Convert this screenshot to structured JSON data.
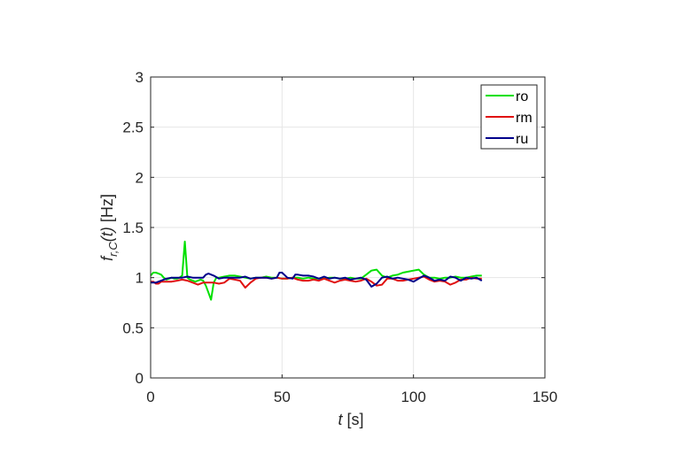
{
  "chart_data": {
    "type": "line",
    "title": "",
    "xlabel": {
      "italic": "t",
      "plain": " [s]"
    },
    "ylabel": {
      "italic_main": "f",
      "subscript": "r,C",
      "italic_arg": "(t)",
      "plain": " [Hz]"
    },
    "xlim": [
      0,
      150
    ],
    "ylim": [
      0,
      3
    ],
    "xticks": [
      "0",
      "50",
      "100",
      "150"
    ],
    "yticks": [
      "0",
      "0.5",
      "1",
      "1.5",
      "2",
      "2.5",
      "3"
    ],
    "grid": true,
    "legend_position": "top-right",
    "series": [
      {
        "name": "ro",
        "color": "#00e000",
        "x": [
          0,
          1,
          2,
          3,
          4,
          5,
          6,
          7,
          8,
          9,
          10,
          11,
          12,
          13,
          14,
          15,
          16,
          17,
          18,
          19,
          20,
          21,
          22,
          23,
          24,
          25,
          26,
          28,
          30,
          32,
          34,
          36,
          38,
          40,
          42,
          44,
          46,
          48,
          50,
          52,
          54,
          56,
          58,
          60,
          62,
          64,
          66,
          68,
          70,
          72,
          74,
          76,
          78,
          80,
          82,
          84,
          86,
          88,
          90,
          92,
          94,
          96,
          98,
          100,
          102,
          104,
          106,
          108,
          110,
          112,
          114,
          116,
          118,
          120,
          122,
          124,
          126
        ],
        "y": [
          1.02,
          1.05,
          1.05,
          1.04,
          1.03,
          1.0,
          0.98,
          0.99,
          1.0,
          0.99,
          0.99,
          1.0,
          1.02,
          1.36,
          1.0,
          0.98,
          0.97,
          0.96,
          0.97,
          0.98,
          0.97,
          0.92,
          0.85,
          0.78,
          0.95,
          1.0,
          1.0,
          1.01,
          1.02,
          1.02,
          1.01,
          1.0,
          0.99,
          1.0,
          1.0,
          1.01,
          1.0,
          1.0,
          0.99,
          0.99,
          1.0,
          1.0,
          0.99,
          1.0,
          0.99,
          0.99,
          0.99,
          1.0,
          1.0,
          0.99,
          0.99,
          1.0,
          0.99,
          0.99,
          1.03,
          1.07,
          1.08,
          1.02,
          1.0,
          1.02,
          1.03,
          1.05,
          1.06,
          1.07,
          1.08,
          1.03,
          1.0,
          1.0,
          0.99,
          1.0,
          1.0,
          1.01,
          1.0,
          1.0,
          1.01,
          1.02,
          1.02
        ]
      },
      {
        "name": "rm",
        "color": "#e01010",
        "x": [
          0,
          1,
          2,
          3,
          4,
          6,
          8,
          10,
          12,
          14,
          16,
          18,
          20,
          22,
          24,
          26,
          28,
          30,
          32,
          34,
          36,
          38,
          40,
          42,
          44,
          46,
          48,
          50,
          52,
          54,
          56,
          58,
          60,
          62,
          64,
          66,
          68,
          70,
          72,
          74,
          76,
          78,
          80,
          82,
          84,
          86,
          88,
          90,
          92,
          94,
          96,
          98,
          100,
          102,
          104,
          106,
          108,
          110,
          112,
          114,
          116,
          118,
          120,
          122,
          124,
          126
        ],
        "y": [
          0.96,
          0.96,
          0.94,
          0.94,
          0.96,
          0.96,
          0.96,
          0.97,
          0.98,
          0.97,
          0.95,
          0.93,
          0.95,
          0.95,
          0.95,
          0.94,
          0.95,
          0.99,
          0.98,
          0.97,
          0.9,
          0.95,
          0.99,
          1.0,
          1.0,
          0.99,
          1.0,
          0.99,
          0.99,
          1.0,
          0.98,
          0.97,
          0.97,
          0.98,
          0.97,
          0.99,
          0.97,
          0.95,
          0.97,
          0.98,
          0.97,
          0.96,
          0.97,
          0.99,
          0.96,
          0.92,
          0.93,
          0.99,
          0.99,
          0.97,
          0.97,
          0.98,
          0.99,
          1.0,
          1.01,
          0.98,
          0.96,
          0.97,
          0.96,
          0.93,
          0.95,
          0.98,
          0.98,
          1.0,
          0.99,
          0.99
        ]
      },
      {
        "name": "ru",
        "color": "#00008b",
        "x": [
          0,
          2,
          4,
          6,
          8,
          10,
          12,
          14,
          16,
          18,
          20,
          21,
          22,
          24,
          26,
          28,
          30,
          32,
          34,
          36,
          38,
          40,
          42,
          44,
          46,
          48,
          49,
          50,
          52,
          54,
          55,
          56,
          58,
          60,
          62,
          64,
          66,
          68,
          70,
          72,
          74,
          76,
          78,
          80,
          82,
          84,
          86,
          88,
          90,
          92,
          94,
          96,
          98,
          100,
          102,
          104,
          106,
          108,
          110,
          112,
          114,
          116,
          118,
          120,
          122,
          124,
          126
        ],
        "y": [
          0.95,
          0.95,
          0.97,
          0.99,
          1.0,
          1.0,
          1.0,
          1.01,
          1.0,
          1.0,
          1.0,
          1.03,
          1.04,
          1.02,
          0.99,
          1.0,
          1.0,
          1.0,
          1.0,
          1.01,
          0.99,
          1.0,
          1.0,
          1.0,
          0.99,
          1.0,
          1.05,
          1.05,
          1.0,
          0.99,
          1.03,
          1.03,
          1.02,
          1.02,
          1.01,
          0.99,
          1.01,
          0.99,
          1.0,
          0.99,
          1.0,
          0.98,
          0.99,
          1.0,
          0.98,
          0.91,
          0.94,
          1.0,
          1.01,
          0.99,
          1.0,
          0.99,
          0.98,
          0.96,
          0.99,
          1.02,
          1.0,
          0.97,
          0.98,
          0.97,
          1.01,
          1.0,
          0.97,
          1.0,
          0.99,
          1.0,
          0.97
        ]
      }
    ]
  }
}
